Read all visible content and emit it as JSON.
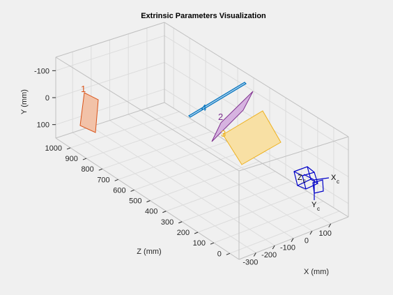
{
  "chart_data": {
    "type": "3d-extrinsics",
    "title": "Extrinsic Parameters Visualization",
    "xlabel": "X (mm)",
    "ylabel": "Y (mm)",
    "zlabel": "Z (mm)",
    "x_ticks": [
      "-300",
      "-200",
      "-100",
      "0",
      "100"
    ],
    "y_ticks": [
      "-100",
      "0",
      "100"
    ],
    "z_ticks": [
      "0",
      "100",
      "200",
      "300",
      "400",
      "500",
      "600",
      "700",
      "800",
      "900",
      "1000"
    ],
    "grid": true,
    "patterns": [
      {
        "label": "1",
        "color": "#d95319",
        "fill": "#f2c2a8"
      },
      {
        "label": "2",
        "color": "#7e2f8e",
        "fill": "#d6b3e0"
      },
      {
        "label": "3",
        "color": "#edb120",
        "fill": "#f8e0a4"
      },
      {
        "label": "4",
        "color": "#0072bd",
        "fill": "#a6cdea"
      }
    ],
    "camera": {
      "x_label": "X",
      "x_sub": "c",
      "y_label": "Y",
      "y_sub": "c",
      "z_label": "Z",
      "z_sub": "c",
      "color": "#0000c8"
    }
  }
}
